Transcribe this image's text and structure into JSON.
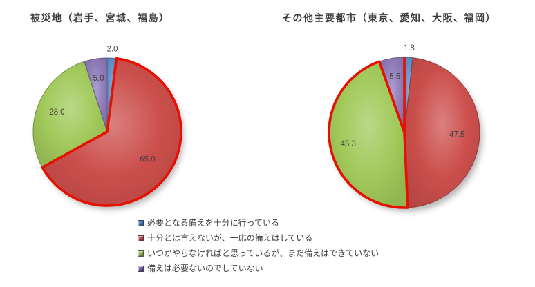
{
  "page": {
    "background": "#ffffff"
  },
  "palette": {
    "blue": "#5E90CA",
    "red": "#CB4F4C",
    "green": "#A1C95A",
    "purple": "#8E7BB9",
    "highlight_red": "#E60F00",
    "label_text": "#3F3F3F",
    "title_text": "#3B3B3B"
  },
  "chart_data": [
    {
      "type": "pie",
      "title": "被災地（岩手、宮城、福島）",
      "unit": "percent",
      "start_angle_deg": 0,
      "direction": "clockwise",
      "legend_position": "bottom",
      "slices": [
        {
          "category": "必要となる備えを十分に行っている",
          "value": 2.0,
          "label": "2.0",
          "color": "#5E90CA",
          "label_pos": "outside",
          "highlighted": false
        },
        {
          "category": "十分とは言えないが、一応の備えはしている",
          "value": 65.0,
          "label": "65.0",
          "color": "#CB4F4C",
          "label_pos": "inside",
          "label_factor": 0.66,
          "highlighted": true
        },
        {
          "category": "いつかやらなければと思っているが、まだ備えはできていない",
          "value": 28.0,
          "label": "28.0",
          "color": "#A1C95A",
          "label_pos": "inside",
          "label_factor": 0.73,
          "highlighted": false
        },
        {
          "category": "備えは必要ないのでしていない",
          "value": 5.0,
          "label": "5.0",
          "color": "#8E7BB9",
          "label_pos": "inside",
          "label_factor": 0.74,
          "highlighted": false
        }
      ]
    },
    {
      "type": "pie",
      "title": "その他主要都市（東京、愛知、大阪、福岡）",
      "unit": "percent",
      "start_angle_deg": 0,
      "direction": "clockwise",
      "legend_position": "bottom",
      "extra_highlight_radius_deg": 0,
      "slices": [
        {
          "category": "必要となる備えを十分に行っている",
          "value": 1.8,
          "label": "1.8",
          "color": "#5E90CA",
          "label_pos": "outside",
          "highlighted": false
        },
        {
          "category": "十分とは言えないが、一応の備えはしている",
          "value": 47.5,
          "label": "47.5",
          "color": "#CB4F4C",
          "label_pos": "inside",
          "label_factor": 0.7,
          "highlighted": false
        },
        {
          "category": "いつかやらなければと思っているが、まだ備えはできていない",
          "value": 45.3,
          "label": "45.3",
          "color": "#A1C95A",
          "label_pos": "inside",
          "label_factor": 0.76,
          "highlighted": true
        },
        {
          "category": "備えは必要ないのでしていない",
          "value": 5.5,
          "label": "5.5",
          "color": "#8E7BB9",
          "label_pos": "inside",
          "label_factor": 0.76,
          "highlighted": false
        }
      ]
    }
  ],
  "legend": {
    "items": [
      {
        "label": "必要となる備えを十分に行っている",
        "color": "#4F81BD"
      },
      {
        "label": "十分とは言えないが、一応の備えはしている",
        "color": "#C0504D"
      },
      {
        "label": "いつかやらなければと思っているが、まだ備えはできていない",
        "color": "#9BBB59"
      },
      {
        "label": "備えは必要ないのでしていない",
        "color": "#8064A2"
      }
    ]
  }
}
